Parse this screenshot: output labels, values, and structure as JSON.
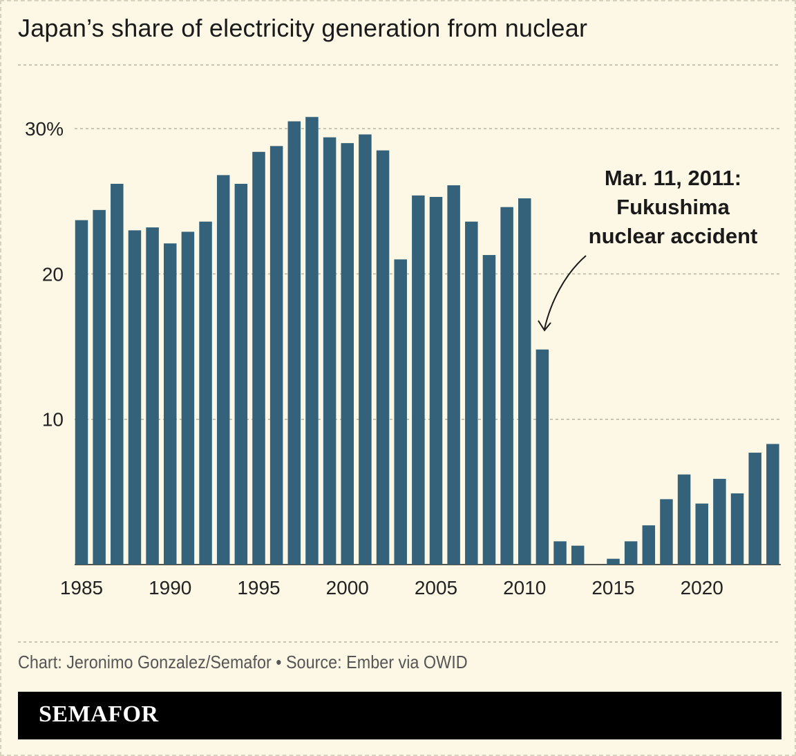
{
  "chart_data": {
    "type": "bar",
    "title": "Japan’s share of electricity generation from nuclear",
    "x": [
      1985,
      1986,
      1987,
      1988,
      1989,
      1990,
      1991,
      1992,
      1993,
      1994,
      1995,
      1996,
      1997,
      1998,
      1999,
      2000,
      2001,
      2002,
      2003,
      2004,
      2005,
      2006,
      2007,
      2008,
      2009,
      2010,
      2011,
      2012,
      2013,
      2014,
      2015,
      2016,
      2017,
      2018,
      2019,
      2020,
      2021,
      2022,
      2023,
      2024
    ],
    "values": [
      23.7,
      24.4,
      26.2,
      23.0,
      23.2,
      22.1,
      22.9,
      23.6,
      26.8,
      26.2,
      28.4,
      28.8,
      30.5,
      30.8,
      29.4,
      29.0,
      29.6,
      28.5,
      21.0,
      25.4,
      25.3,
      26.1,
      23.6,
      21.3,
      24.6,
      25.2,
      14.8,
      1.6,
      1.3,
      0.0,
      0.4,
      1.6,
      2.7,
      4.5,
      6.2,
      4.2,
      5.9,
      4.9,
      7.7,
      8.3
    ],
    "ylim": [
      0,
      31.7
    ],
    "yticks": [
      10,
      20,
      30
    ],
    "ytick_labels": [
      "10",
      "20",
      "30%"
    ],
    "xticks": [
      1985,
      1990,
      1995,
      2000,
      2005,
      2010,
      2015,
      2020
    ],
    "xtick_labels": [
      "1985",
      "1990",
      "1995",
      "2000",
      "2005",
      "2010",
      "2015",
      "2020"
    ],
    "bar_color": "#33627a",
    "grid": true,
    "annotation": {
      "x": 2011,
      "lines": [
        "Mar. 11, 2011:",
        "Fukushima",
        "nuclear accident"
      ]
    }
  },
  "footer": {
    "source": "Chart: Jeronimo Gonzalez/Semafor • Source: Ember via OWID",
    "brand": "SEMAFOR"
  },
  "colors": {
    "background": "#fdf8e5",
    "grid": "#b9b4a2",
    "text": "#1a1a1a",
    "brand_bar": "#000000"
  }
}
